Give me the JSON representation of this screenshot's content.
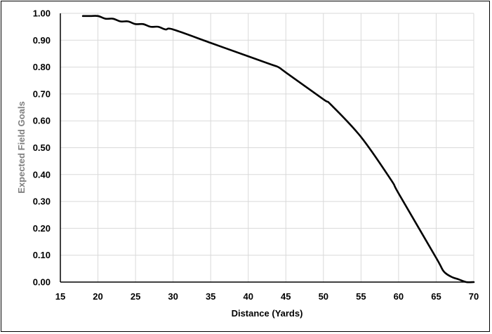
{
  "chart_data": {
    "type": "line",
    "title": "",
    "xlabel": "Distance (Yards)",
    "ylabel": "Expected Field Goals",
    "xlim": [
      15,
      70
    ],
    "ylim": [
      0,
      1
    ],
    "x_ticks": [
      "15",
      "20",
      "25",
      "30",
      "35",
      "40",
      "45",
      "50",
      "55",
      "60",
      "65",
      "70"
    ],
    "y_ticks": [
      "0.00",
      "0.10",
      "0.20",
      "0.30",
      "0.40",
      "0.50",
      "0.60",
      "0.70",
      "0.80",
      "0.90",
      "1.00"
    ],
    "grid": true,
    "legend": "none",
    "line_color": "#000000",
    "grid_color": "#d9d9d9",
    "series": [
      {
        "x": [
          18,
          19,
          20,
          21,
          22,
          23,
          24,
          25,
          26,
          27,
          28,
          29,
          30,
          35,
          40,
          43,
          44,
          45,
          50,
          51,
          55,
          59,
          60,
          65,
          66,
          67,
          68,
          69,
          70
        ],
        "values": [
          0.99,
          0.99,
          0.99,
          0.98,
          0.98,
          0.97,
          0.97,
          0.96,
          0.96,
          0.95,
          0.95,
          0.94,
          0.94,
          0.89,
          0.84,
          0.81,
          0.8,
          0.78,
          0.68,
          0.66,
          0.54,
          0.38,
          0.33,
          0.09,
          0.04,
          0.02,
          0.01,
          0.0,
          0.0
        ]
      }
    ]
  }
}
